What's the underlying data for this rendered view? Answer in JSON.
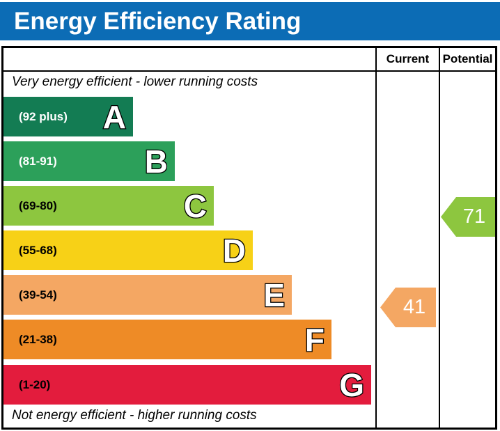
{
  "title": "Energy Efficiency Rating",
  "header": {
    "current_label": "Current",
    "potential_label": "Potential"
  },
  "notes": {
    "top": "Very energy efficient - lower running costs",
    "bottom": "Not energy efficient - higher running costs"
  },
  "bands": [
    {
      "letter": "A",
      "range": "(92 plus)",
      "color": "#137c53",
      "range_text_color": "#ffffff"
    },
    {
      "letter": "B",
      "range": "(81-91)",
      "color": "#2ca05a",
      "range_text_color": "#ffffff"
    },
    {
      "letter": "C",
      "range": "(69-80)",
      "color": "#8dc63f",
      "range_text_color": "#000000"
    },
    {
      "letter": "D",
      "range": "(55-68)",
      "color": "#f7d117",
      "range_text_color": "#000000"
    },
    {
      "letter": "E",
      "range": "(39-54)",
      "color": "#f4a763",
      "range_text_color": "#000000"
    },
    {
      "letter": "F",
      "range": "(21-38)",
      "color": "#ee8b26",
      "range_text_color": "#000000"
    },
    {
      "letter": "G",
      "range": "(1-20)",
      "color": "#e31c3d",
      "range_text_color": "#000000"
    }
  ],
  "markers": {
    "current": {
      "value": "41",
      "color": "#f4a763"
    },
    "potential": {
      "value": "71",
      "color": "#8dc63f"
    }
  },
  "colors": {
    "title_bg": "#0c6cb5",
    "title_text": "#ffffff",
    "border": "#000000"
  },
  "chart_data": {
    "type": "bar",
    "title": "Energy Efficiency Rating",
    "categories": [
      "A",
      "B",
      "C",
      "D",
      "E",
      "F",
      "G"
    ],
    "band_ranges": [
      "92 plus",
      "81-91",
      "69-80",
      "55-68",
      "39-54",
      "21-38",
      "1-20"
    ],
    "band_colors": [
      "#137c53",
      "#2ca05a",
      "#8dc63f",
      "#f7d117",
      "#f4a763",
      "#ee8b26",
      "#e31c3d"
    ],
    "annotations": [
      "Very energy efficient - lower running costs",
      "Not energy efficient - higher running costs"
    ],
    "series": [
      {
        "name": "Current",
        "value": 41,
        "band": "E",
        "color": "#f4a763"
      },
      {
        "name": "Potential",
        "value": 71,
        "band": "C",
        "color": "#8dc63f"
      }
    ],
    "scale": [
      1,
      100
    ],
    "legend_position": "none",
    "grid": false
  }
}
